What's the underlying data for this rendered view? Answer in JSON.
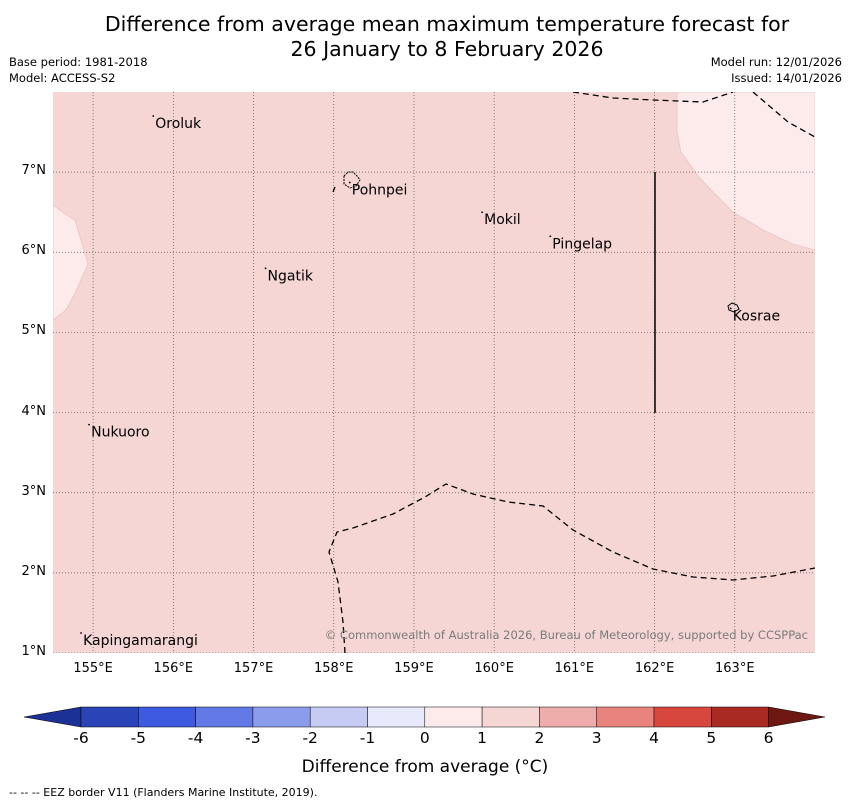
{
  "title": {
    "line1": "Difference from average mean maximum temperature forecast for",
    "line2": "26 January to 8 February 2026"
  },
  "meta": {
    "base_period": "Base period: 1981-2018",
    "model": "Model: ACCESS-S2",
    "model_run": "Model run: 12/01/2026",
    "issued": "Issued: 14/01/2026"
  },
  "map": {
    "bounds": {
      "lon_min": 154.5,
      "lon_max": 164.0,
      "lat_min": 1.0,
      "lat_max": 8.0
    },
    "lon_ticks": [
      155,
      156,
      157,
      158,
      159,
      160,
      161,
      162,
      163
    ],
    "lon_tick_labels": [
      "155°E",
      "156°E",
      "157°E",
      "158°E",
      "159°E",
      "160°E",
      "161°E",
      "162°E",
      "163°E"
    ],
    "lat_ticks": [
      7,
      6,
      5,
      4,
      3,
      2,
      1
    ],
    "lat_tick_labels": [
      "7°N",
      "6°N",
      "5°N",
      "4°N",
      "3°N",
      "2°N",
      "1°N"
    ],
    "background_category": "1 to 2",
    "background_color": "#f5d6d4",
    "light_category": "0 to 1",
    "light_color": "#fcebea",
    "places": [
      {
        "name": "Oroluk",
        "lon": 155.75,
        "lat": 7.7
      },
      {
        "name": "Pohnpei",
        "lon": 158.2,
        "lat": 6.87
      },
      {
        "name": "Mokil",
        "lon": 159.85,
        "lat": 6.5
      },
      {
        "name": "Pingelap",
        "lon": 160.7,
        "lat": 6.2
      },
      {
        "name": "Ngatik",
        "lon": 157.15,
        "lat": 5.8
      },
      {
        "name": "Kosrae",
        "lon": 162.95,
        "lat": 5.3
      },
      {
        "name": "Nukuoro",
        "lon": 154.95,
        "lat": 3.85
      },
      {
        "name": "Kapingamarangi",
        "lon": 154.85,
        "lat": 1.25
      }
    ],
    "copyright": "© Commonwealth of Australia 2026, Bureau of Meteorology, supported by CCSPPac"
  },
  "colorbar": {
    "colors": [
      "#1c3196",
      "#2a44b7",
      "#3d5ae1",
      "#6379e6",
      "#8c9ced",
      "#c6cbf4",
      "#e8e9fb",
      "#fcebea",
      "#f5d6d4",
      "#eeadaa",
      "#e8837e",
      "#d8473d",
      "#a82a23",
      "#6e1812"
    ],
    "tick_labels": [
      "-6",
      "-5",
      "-4",
      "-3",
      "-2",
      "-1",
      "0",
      "1",
      "2",
      "3",
      "4",
      "5",
      "6"
    ],
    "title": "Difference from average (°C)"
  },
  "footnote": "--  --  -- EEZ border V11 (Flanders Marine Institute, 2019)."
}
